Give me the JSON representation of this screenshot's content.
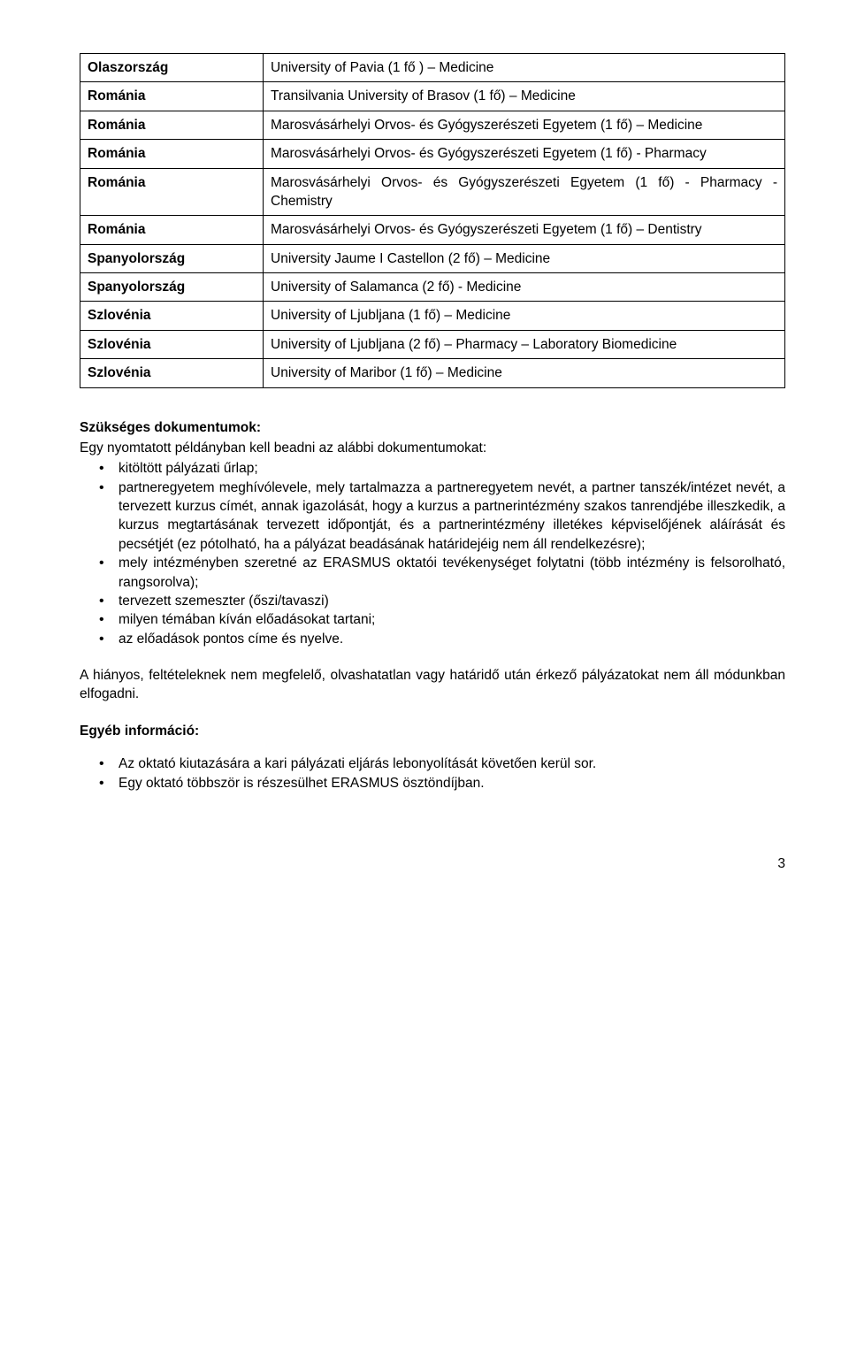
{
  "table": {
    "rows": [
      {
        "c1": "Olaszország",
        "c2": "University of Pavia (1 fő ) – Medicine"
      },
      {
        "c1": "Románia",
        "c2": "Transilvania University of Brasov (1 fő) – Medicine"
      },
      {
        "c1": "Románia",
        "c2": "Marosvásárhelyi Orvos- és Gyógyszerészeti Egyetem (1 fő) – Medicine"
      },
      {
        "c1": "Románia",
        "c2": "Marosvásárhelyi Orvos- és Gyógyszerészeti Egyetem (1 fő) - Pharmacy"
      },
      {
        "c1": "Románia",
        "c2": "Marosvásárhelyi Orvos- és Gyógyszerészeti Egyetem (1 fő) - Pharmacy - Chemistry"
      },
      {
        "c1": "Románia",
        "c2": "Marosvásárhelyi Orvos- és Gyógyszerészeti Egyetem (1 fő) – Dentistry"
      },
      {
        "c1": "Spanyolország",
        "c2": "University Jaume I Castellon (2 fő) – Medicine"
      },
      {
        "c1": "Spanyolország",
        "c2": "University of Salamanca (2 fő) - Medicine"
      },
      {
        "c1": "Szlovénia",
        "c2": "University of Ljubljana (1 fő) – Medicine"
      },
      {
        "c1": "Szlovénia",
        "c2": "University of Ljubljana (2 fő) – Pharmacy – Laboratory Biomedicine"
      },
      {
        "c1": "Szlovénia",
        "c2": "University of Maribor (1 fő) – Medicine"
      }
    ]
  },
  "docs": {
    "heading": "Szükséges dokumentumok:",
    "intro": "Egy nyomtatott példányban kell beadni az alábbi dokumentumokat:",
    "items": [
      "kitöltött pályázati űrlap;",
      "partneregyetem meghívólevele, mely tartalmazza a partneregyetem nevét, a partner tanszék/intézet nevét, a tervezett kurzus címét, annak igazolását, hogy a kurzus a partnerintézmény szakos tanrendjébe illeszkedik, a kurzus megtartásának tervezett időpontját, és a partnerintézmény illetékes képviselőjének aláírását és pecsétjét (ez pótolható, ha a pályázat beadásának határidejéig nem áll rendelkezésre);",
      "mely intézményben szeretné az ERASMUS oktatói tevékenységet folytatni (több intézmény is felsorolható, rangsorolva);",
      "tervezett szemeszter (őszi/tavaszi)",
      "milyen témában kíván előadásokat tartani;",
      "az előadások pontos címe és nyelve."
    ]
  },
  "paragraph": "A hiányos, feltételeknek nem megfelelő, olvashatatlan vagy határidő után érkező pályázatokat nem áll módunkban elfogadni.",
  "other": {
    "heading": "Egyéb információ:",
    "items": [
      "Az oktató kiutazására a kari pályázati eljárás lebonyolítását követően kerül sor.",
      "Egy oktató többször is részesülhet ERASMUS ösztöndíjban."
    ]
  },
  "pageNumber": "3"
}
